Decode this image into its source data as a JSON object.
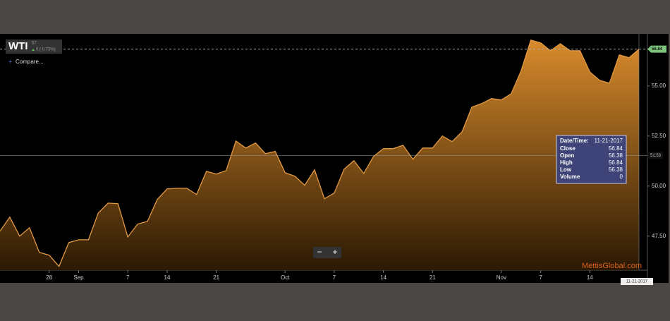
{
  "chart_data": {
    "type": "area",
    "title": "WTI",
    "subtitle": "57",
    "change": "0 ( 0.73%)",
    "compare": "Compare...",
    "watermark": "MettisGlobal.com",
    "zoom": [
      "−",
      "+"
    ],
    "color": "#e39a45",
    "categories": [
      null,
      null,
      null,
      null,
      null,
      "28",
      null,
      null,
      "Sep",
      null,
      null,
      null,
      null,
      "7",
      null,
      null,
      null,
      "14",
      null,
      null,
      null,
      null,
      "21",
      null,
      null,
      null,
      null,
      null,
      null,
      "Oct",
      null,
      null,
      null,
      null,
      "7",
      null,
      null,
      null,
      null,
      "14",
      null,
      null,
      null,
      null,
      "21",
      null,
      null,
      null,
      null,
      null,
      null,
      "Nov",
      null,
      null,
      null,
      "7",
      null,
      null,
      null,
      null,
      "14",
      null,
      null,
      null,
      null,
      "11-21-2017"
    ],
    "values": [
      47.75,
      48.45,
      47.5,
      47.92,
      46.69,
      46.55,
      45.99,
      47.18,
      47.32,
      47.32,
      48.66,
      49.15,
      49.12,
      47.46,
      48.1,
      48.24,
      49.33,
      49.86,
      49.89,
      49.89,
      49.58,
      50.74,
      50.6,
      50.77,
      52.25,
      51.9,
      52.15,
      51.62,
      51.73,
      50.67,
      50.49,
      50.04,
      50.81,
      49.37,
      49.65,
      50.84,
      51.27,
      50.63,
      51.48,
      51.87,
      51.87,
      52.04,
      51.34,
      51.9,
      51.9,
      52.5,
      52.22,
      52.71,
      53.94,
      54.12,
      54.37,
      54.3,
      54.61,
      55.74,
      57.29,
      57.15,
      56.76,
      57.11,
      56.76,
      56.76,
      55.7,
      55.28,
      55.14,
      56.55,
      56.41,
      56.84
    ],
    "ylim": [
      45.8,
      57.6
    ],
    "yticks": [
      {
        "value": 47.5,
        "label": "47.50"
      },
      {
        "value": 50,
        "label": "50.00"
      },
      {
        "value": 52.5,
        "label": "52.50"
      },
      {
        "value": 55,
        "label": "55.00"
      }
    ],
    "crosshair": 51.53,
    "tooltip": {
      "title": [
        "Date/Time:",
        "11-21-2017"
      ],
      "rows": [
        [
          "Close",
          "56.84"
        ],
        [
          "Open",
          "56.38"
        ],
        [
          "High",
          "56.84"
        ],
        [
          "Low",
          "56.38"
        ],
        [
          "Volume",
          "0"
        ]
      ]
    }
  }
}
